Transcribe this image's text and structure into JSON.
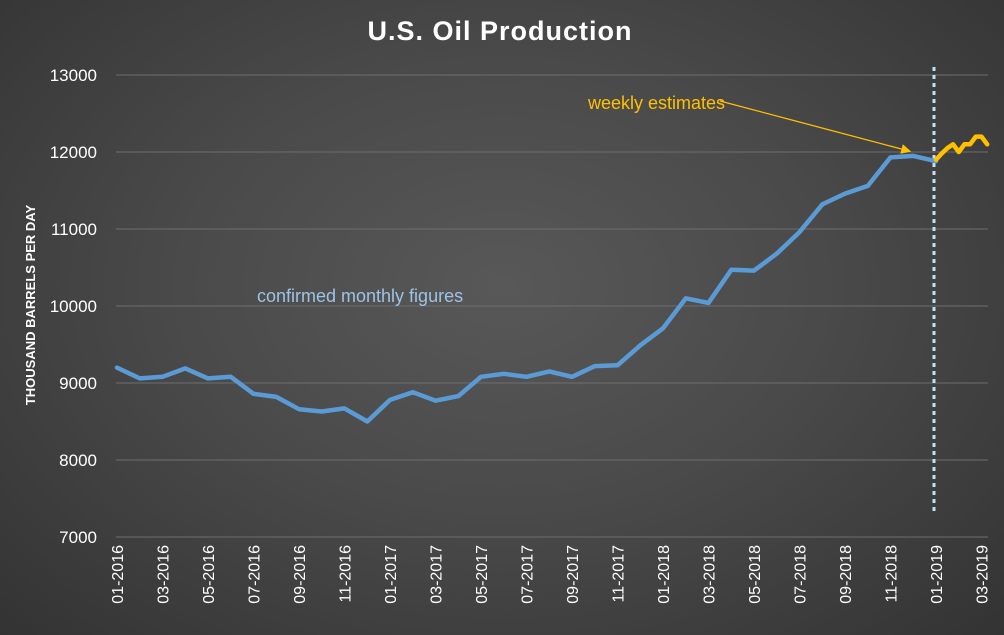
{
  "chart_data": {
    "type": "line",
    "title": "U.S. Oil Production",
    "xlabel": "",
    "ylabel": "THOUSAND BARRELS PER DAY",
    "ylim": [
      7000,
      13000
    ],
    "yticks": [
      "7000",
      "8000",
      "9000",
      "10000",
      "11000",
      "12000",
      "13000"
    ],
    "xticks": [
      "01-2016",
      "03-2016",
      "05-2016",
      "07-2016",
      "09-2016",
      "11-2016",
      "01-2017",
      "03-2017",
      "05-2017",
      "07-2017",
      "09-2017",
      "11-2017",
      "01-2018",
      "03-2018",
      "05-2018",
      "07-2018",
      "09-2018",
      "11-2018",
      "01-2019",
      "03-2019"
    ],
    "grid": true,
    "divider_x": "01-2019",
    "series": [
      {
        "name": "confirmed monthly figures",
        "color": "#5b9bd5",
        "points": [
          [
            "01-2016",
            9200
          ],
          [
            "02-2016",
            9060
          ],
          [
            "03-2016",
            9080
          ],
          [
            "04-2016",
            9190
          ],
          [
            "05-2016",
            9060
          ],
          [
            "06-2016",
            9080
          ],
          [
            "07-2016",
            8860
          ],
          [
            "08-2016",
            8820
          ],
          [
            "09-2016",
            8660
          ],
          [
            "10-2016",
            8630
          ],
          [
            "11-2016",
            8670
          ],
          [
            "12-2016",
            8500
          ],
          [
            "01-2017",
            8780
          ],
          [
            "02-2017",
            8880
          ],
          [
            "03-2017",
            8770
          ],
          [
            "04-2017",
            8830
          ],
          [
            "05-2017",
            9080
          ],
          [
            "06-2017",
            9120
          ],
          [
            "07-2017",
            9080
          ],
          [
            "08-2017",
            9150
          ],
          [
            "09-2017",
            9080
          ],
          [
            "10-2017",
            9220
          ],
          [
            "11-2017",
            9230
          ],
          [
            "12-2017",
            9490
          ],
          [
            "01-2018",
            9710
          ],
          [
            "02-2018",
            10100
          ],
          [
            "03-2018",
            10040
          ],
          [
            "04-2018",
            10470
          ],
          [
            "05-2018",
            10460
          ],
          [
            "06-2018",
            10680
          ],
          [
            "07-2018",
            10960
          ],
          [
            "08-2018",
            11320
          ],
          [
            "09-2018",
            11460
          ],
          [
            "10-2018",
            11560
          ],
          [
            "11-2018",
            11930
          ],
          [
            "12-2018",
            11950
          ],
          [
            "01-2019",
            11880
          ]
        ]
      },
      {
        "name": "weekly estimates",
        "color": "#ffc000",
        "points": [
          [
            "01-2019",
            11900
          ],
          [
            "01-2019+1w",
            11980
          ],
          [
            "01-2019+2w",
            12050
          ],
          [
            "01-2019+3w",
            12100
          ],
          [
            "02-2019",
            12000
          ],
          [
            "02-2019+1w",
            12100
          ],
          [
            "02-2019+2w",
            12100
          ],
          [
            "02-2019+3w",
            12200
          ],
          [
            "03-2019",
            12200
          ],
          [
            "03-2019+1w",
            12100
          ]
        ]
      }
    ],
    "annotations": [
      {
        "text": "weekly estimates",
        "color": "#ffc000",
        "arrow_to": [
          "12-2018",
          11960
        ]
      },
      {
        "text": "confirmed monthly figures",
        "color": "#9dc3e6"
      }
    ]
  }
}
